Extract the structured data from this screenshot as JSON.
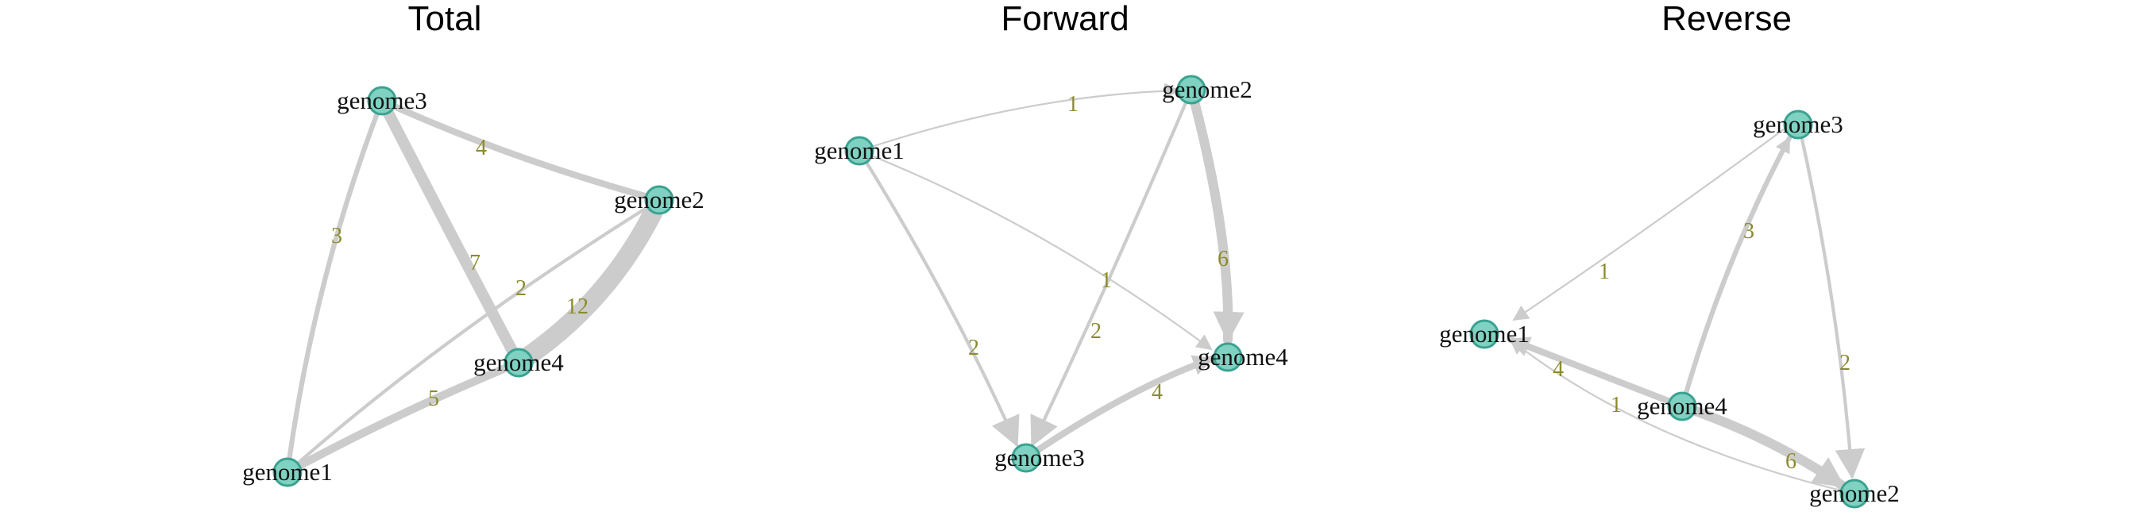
{
  "colors": {
    "edge": "#cccccc",
    "edge_label": "#8b8b2e",
    "node_fill": "#7fd1c1",
    "node_stroke": "#3aa291"
  },
  "panels": [
    {
      "title": "Total",
      "directed": false,
      "nodes": [
        "genome1",
        "genome2",
        "genome3",
        "genome4"
      ],
      "edges": [
        {
          "from": "genome3",
          "to": "genome2",
          "weight": 4
        },
        {
          "from": "genome3",
          "to": "genome1",
          "weight": 3
        },
        {
          "from": "genome3",
          "to": "genome4",
          "weight": 7
        },
        {
          "from": "genome2",
          "to": "genome1",
          "weight": 2
        },
        {
          "from": "genome2",
          "to": "genome4",
          "weight": 12
        },
        {
          "from": "genome4",
          "to": "genome1",
          "weight": 5
        }
      ]
    },
    {
      "title": "Forward",
      "directed": true,
      "nodes": [
        "genome1",
        "genome2",
        "genome3",
        "genome4"
      ],
      "edges": [
        {
          "from": "genome1",
          "to": "genome2",
          "weight": 1
        },
        {
          "from": "genome1",
          "to": "genome4",
          "weight": 1
        },
        {
          "from": "genome1",
          "to": "genome3",
          "weight": 2
        },
        {
          "from": "genome2",
          "to": "genome3",
          "weight": 2
        },
        {
          "from": "genome2",
          "to": "genome4",
          "weight": 6
        },
        {
          "from": "genome3",
          "to": "genome4",
          "weight": 4
        }
      ]
    },
    {
      "title": "Reverse",
      "directed": true,
      "nodes": [
        "genome1",
        "genome2",
        "genome3",
        "genome4"
      ],
      "edges": [
        {
          "from": "genome3",
          "to": "genome1",
          "weight": 1
        },
        {
          "from": "genome4",
          "to": "genome3",
          "weight": 3
        },
        {
          "from": "genome3",
          "to": "genome2",
          "weight": 2
        },
        {
          "from": "genome4",
          "to": "genome1",
          "weight": 4
        },
        {
          "from": "genome2",
          "to": "genome1",
          "weight": 1
        },
        {
          "from": "genome4",
          "to": "genome2",
          "weight": 6
        }
      ]
    }
  ]
}
